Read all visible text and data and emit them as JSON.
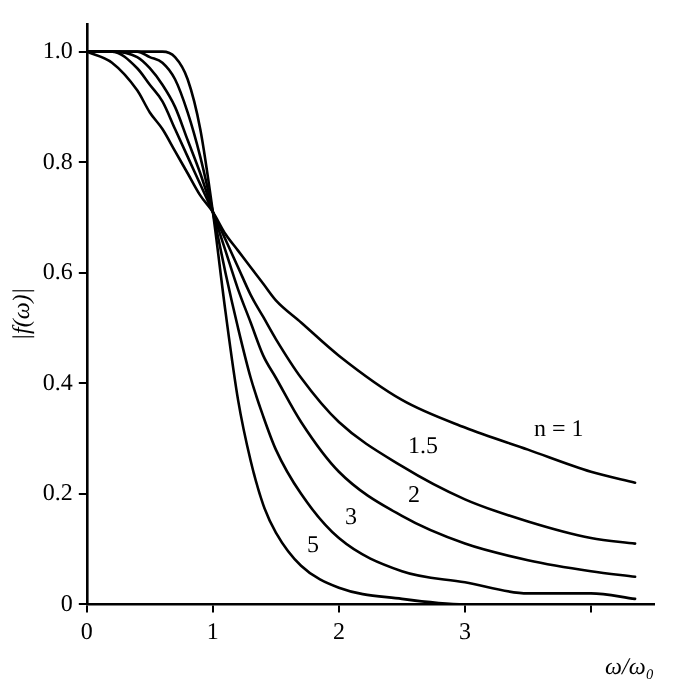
{
  "chart_data": {
    "type": "line",
    "x": [
      0,
      0.2,
      0.4,
      0.5,
      0.6,
      0.7,
      0.8,
      0.9,
      1,
      1.1,
      1.2,
      1.3,
      1.4,
      1.5,
      1.7,
      2,
      2.5,
      3,
      3.5,
      4,
      4.35
    ],
    "series": [
      {
        "color": "#000000",
        "values": [
          1,
          0.98,
          0.93,
          0.89,
          0.86,
          0.82,
          0.78,
          0.74,
          0.71,
          0.67,
          0.64,
          0.61,
          0.58,
          0.55,
          0.51,
          0.45,
          0.37,
          0.32,
          0.28,
          0.24,
          0.22
        ]
      },
      {
        "color": "#000000",
        "values": [
          1,
          1,
          0.97,
          0.94,
          0.91,
          0.86,
          0.81,
          0.76,
          0.71,
          0.66,
          0.61,
          0.56,
          0.52,
          0.48,
          0.41,
          0.33,
          0.25,
          0.19,
          0.15,
          0.12,
          0.11
        ]
      },
      {
        "color": "#000000",
        "values": [
          1,
          1,
          0.99,
          0.97,
          0.94,
          0.9,
          0.84,
          0.78,
          0.71,
          0.64,
          0.57,
          0.51,
          0.45,
          0.41,
          0.33,
          0.24,
          0.16,
          0.11,
          0.08,
          0.06,
          0.05
        ]
      },
      {
        "color": "#000000",
        "values": [
          1,
          1,
          1,
          0.99,
          0.98,
          0.95,
          0.89,
          0.81,
          0.71,
          0.6,
          0.5,
          0.41,
          0.34,
          0.28,
          0.2,
          0.12,
          0.06,
          0.04,
          0.02,
          0.02,
          0.01
        ]
      },
      {
        "color": "#000000",
        "values": [
          1,
          1,
          1,
          1,
          1,
          0.99,
          0.95,
          0.86,
          0.71,
          0.53,
          0.37,
          0.26,
          0.18,
          0.13,
          0.07,
          0.03,
          0.01,
          0,
          0,
          0,
          0
        ]
      }
    ],
    "xlabel": "ω/ω₀",
    "ylabel": "|f(ω)|",
    "xlim": [
      0,
      4.5
    ],
    "xticks": [
      0,
      1,
      2,
      3,
      {
        "value": 4,
        "label": null
      }
    ],
    "ylim": [
      0,
      1.05
    ],
    "yticks": [
      0,
      0.2,
      0.4,
      0.6,
      0.8,
      {
        "value": 1,
        "label": "1.0"
      }
    ],
    "annotations": [
      {
        "text": "n = 1",
        "x": 3.5,
        "y": 0.28
      },
      {
        "text": "1.5",
        "x": 2.5,
        "y": 0.25
      },
      {
        "text": "2",
        "x": 2.5,
        "y": 0.16
      },
      {
        "text": "3",
        "x": 2,
        "y": 0.12
      },
      {
        "text": "5",
        "x": 1.7,
        "y": 0.07
      }
    ],
    "grid": false,
    "legend": false,
    "marker": "none",
    "line_style": "solid"
  }
}
